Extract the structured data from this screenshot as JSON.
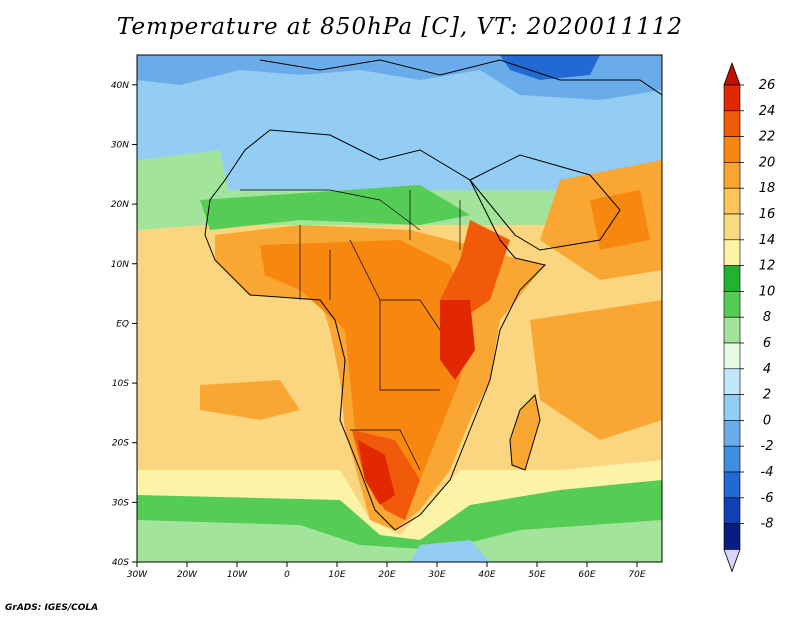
{
  "title": "Temperature at 850hPa [C], VT: 2020011112",
  "credit": "GrADS: IGES/COLA",
  "map": {
    "lon_range": [
      -30,
      75
    ],
    "lat_range": [
      -40,
      45
    ],
    "lon_labels": [
      "30W",
      "20W",
      "10W",
      "0",
      "10E",
      "20E",
      "30E",
      "40E",
      "50E",
      "60E",
      "70E"
    ],
    "lat_labels": [
      "40N",
      "30N",
      "20N",
      "10N",
      "EQ",
      "10S",
      "20S",
      "30S",
      "40S"
    ]
  },
  "colorbar": {
    "labels": [
      "26",
      "24",
      "22",
      "20",
      "18",
      "16",
      "14",
      "12",
      "10",
      "8",
      "6",
      "4",
      "2",
      "0",
      "-2",
      "-4",
      "-6",
      "-8"
    ],
    "colors": [
      "#e12800",
      "#f05a0a",
      "#f7870f",
      "#f9a633",
      "#fbc45c",
      "#fbdb81",
      "#fbf3a5",
      "#1fb332",
      "#55cc55",
      "#a3e49d",
      "#e5fae3",
      "#bfe7f9",
      "#93cdf3",
      "#6aacea",
      "#3f8fe0",
      "#216ad4",
      "#103fb6",
      "#081d84"
    ],
    "top_arrow": "#c21000",
    "bottom_arrow": "#d5d5ff"
  },
  "colors": {
    "ocean_south": "#fbd680",
    "land_warm": "#f7870f",
    "land_hot": "#e12800",
    "sahara": "#93cdf3",
    "boundaries": "#000000"
  }
}
